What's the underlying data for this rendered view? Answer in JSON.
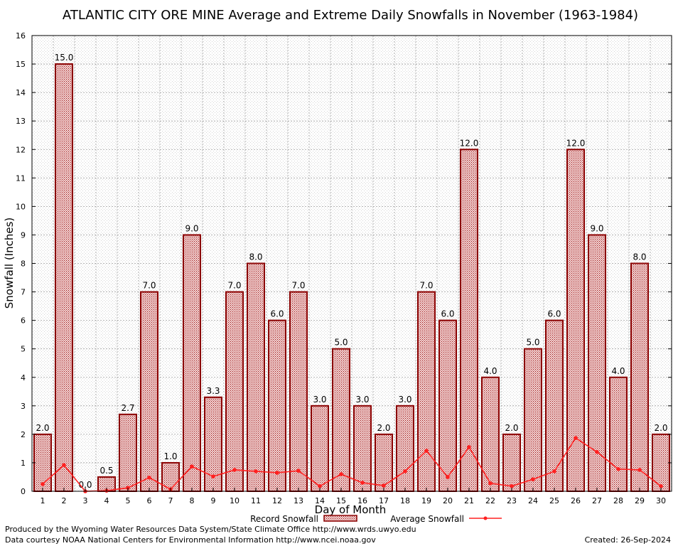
{
  "chart_data": {
    "type": "bar",
    "title": "ATLANTIC CITY ORE MINE Average and Extreme Daily Snowfalls in November (1963-1984)",
    "xlabel": "Day of Month",
    "ylabel": "Snowfall (Inches)",
    "ylim": [
      0,
      16
    ],
    "yticks": [
      "0",
      "1",
      "2",
      "3",
      "4",
      "5",
      "6",
      "7",
      "8",
      "9",
      "10",
      "11",
      "12",
      "13",
      "14",
      "15",
      "16"
    ],
    "grid": true,
    "categories": [
      "1",
      "2",
      "3",
      "4",
      "5",
      "6",
      "7",
      "8",
      "9",
      "10",
      "11",
      "12",
      "13",
      "14",
      "15",
      "16",
      "17",
      "18",
      "19",
      "20",
      "21",
      "22",
      "23",
      "24",
      "25",
      "26",
      "27",
      "28",
      "29",
      "30"
    ],
    "series": [
      {
        "name": "Record Snowfall",
        "type": "bar",
        "color": "#8b0000",
        "values": [
          2.0,
          15.0,
          0.0,
          0.5,
          2.7,
          7.0,
          1.0,
          9.0,
          3.3,
          7.0,
          8.0,
          6.0,
          7.0,
          3.0,
          5.0,
          3.0,
          2.0,
          3.0,
          7.0,
          6.0,
          12.0,
          4.0,
          2.0,
          5.0,
          6.0,
          12.0,
          9.0,
          4.0,
          8.0,
          2.0
        ],
        "labels": [
          "2.0",
          "15.0",
          "0.0",
          "0.5",
          "2.7",
          "7.0",
          "1.0",
          "9.0",
          "3.3",
          "7.0",
          "8.0",
          "6.0",
          "7.0",
          "3.0",
          "5.0",
          "3.0",
          "2.0",
          "3.0",
          "7.0",
          "6.0",
          "12.0",
          "4.0",
          "2.0",
          "5.0",
          "6.0",
          "12.0",
          "9.0",
          "4.0",
          "8.0",
          "2.0"
        ]
      },
      {
        "name": "Average Snowfall",
        "type": "line",
        "color": "#ff2020",
        "values": [
          0.25,
          0.92,
          0.0,
          0.02,
          0.12,
          0.48,
          0.07,
          0.87,
          0.52,
          0.75,
          0.7,
          0.65,
          0.72,
          0.18,
          0.6,
          0.3,
          0.2,
          0.7,
          1.42,
          0.5,
          1.55,
          0.28,
          0.18,
          0.42,
          0.7,
          1.87,
          1.38,
          0.78,
          0.75,
          0.18
        ]
      }
    ],
    "legend_position": "bottom"
  },
  "footer": {
    "produced_by": "Produced by the Wyoming Water Resources Data System/State Climate Office http://www.wrds.uwyo.edu",
    "courtesy": "Data courtesy NOAA National Centers for Environmental Information http://www.ncei.noaa.gov",
    "created": "Created:  26-Sep-2024"
  },
  "colors": {
    "bar_stroke": "#8b0000",
    "bar_fill_pattern": "#a01818",
    "line": "#ff2020",
    "grid": "#a0a0a0"
  }
}
